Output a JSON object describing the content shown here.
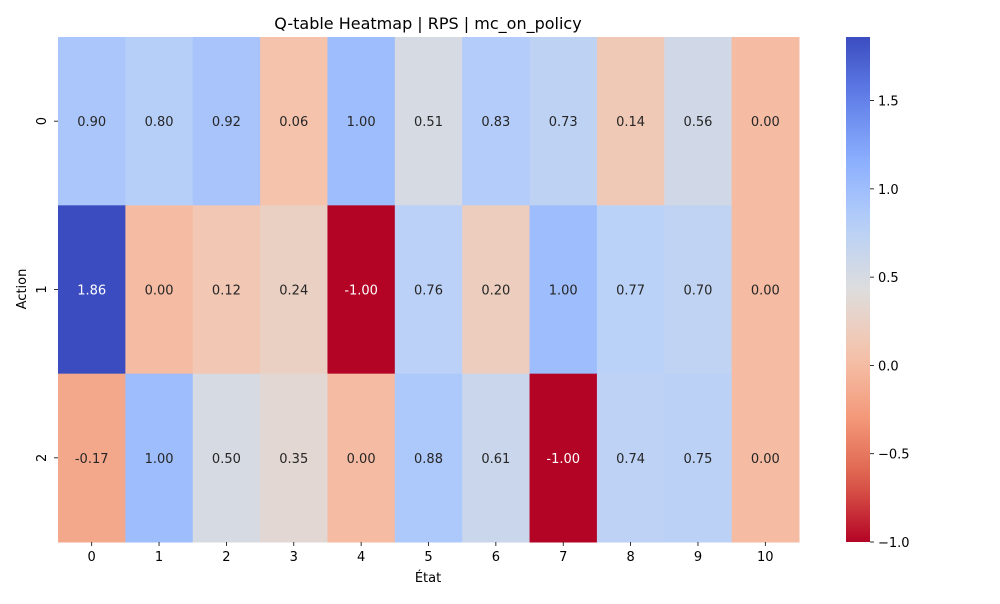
{
  "chart_data": {
    "type": "heatmap",
    "title": "Q-table Heatmap | RPS | mc_on_policy",
    "xlabel": "État",
    "ylabel": "Action",
    "x_ticks": [
      "0",
      "1",
      "2",
      "3",
      "4",
      "5",
      "6",
      "7",
      "8",
      "9",
      "10"
    ],
    "y_ticks": [
      "0",
      "1",
      "2"
    ],
    "values": [
      [
        0.9,
        0.8,
        0.92,
        0.06,
        1.0,
        0.51,
        0.83,
        0.73,
        0.14,
        0.56,
        0.0
      ],
      [
        1.86,
        0.0,
        0.12,
        0.24,
        -1.0,
        0.76,
        0.2,
        1.0,
        0.77,
        0.7,
        0.0
      ],
      [
        -0.17,
        1.0,
        0.5,
        0.35,
        0.0,
        0.88,
        0.61,
        -1.0,
        0.74,
        0.75,
        0.0
      ]
    ],
    "value_labels": [
      [
        "0.90",
        "0.80",
        "0.92",
        "0.06",
        "1.00",
        "0.51",
        "0.83",
        "0.73",
        "0.14",
        "0.56",
        "0.00"
      ],
      [
        "1.86",
        "0.00",
        "0.12",
        "0.24",
        "-1.00",
        "0.76",
        "0.20",
        "1.00",
        "0.77",
        "0.70",
        "0.00"
      ],
      [
        "-0.17",
        "1.00",
        "0.50",
        "0.35",
        "0.00",
        "0.88",
        "0.61",
        "-1.00",
        "0.74",
        "0.75",
        "0.00"
      ]
    ],
    "colormap": "coolwarm_r",
    "vmin": -1.0,
    "vmax": 1.86,
    "colorbar_ticks": [
      "1.5",
      "1.0",
      "0.5",
      "0.0",
      "−0.5",
      "−1.0"
    ],
    "colorbar_tick_values": [
      1.5,
      1.0,
      0.5,
      0.0,
      -0.5,
      -1.0
    ]
  }
}
